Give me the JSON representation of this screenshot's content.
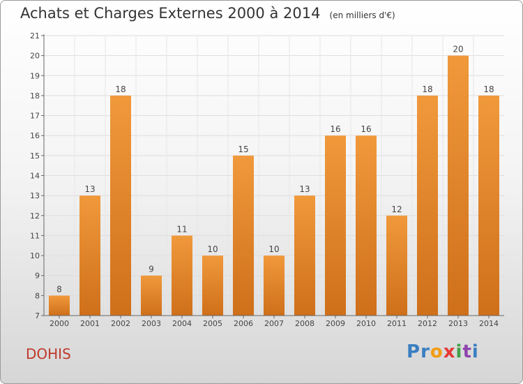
{
  "chart_data": {
    "type": "bar",
    "title": "Achats et Charges Externes 2000 à 2014",
    "subtitle": "(en milliers d'€)",
    "categories": [
      "2000",
      "2001",
      "2002",
      "2003",
      "2004",
      "2005",
      "2006",
      "2007",
      "2008",
      "2009",
      "2010",
      "2011",
      "2012",
      "2013",
      "2014"
    ],
    "values": [
      8,
      13,
      18,
      9,
      11,
      10,
      15,
      10,
      13,
      16,
      16,
      12,
      18,
      20,
      18
    ],
    "ylim": [
      7,
      21
    ],
    "yticks": [
      7,
      8,
      9,
      10,
      11,
      12,
      13,
      14,
      15,
      16,
      17,
      18,
      19,
      20,
      21
    ],
    "grid": true,
    "bar_color": "#f0993b",
    "bar_color_dark": "#cf6f1a"
  },
  "commune": "DOHIS",
  "logo": {
    "text": "Proxiti",
    "letter_colors": [
      "#3a7fc1",
      "#3a7fc1",
      "#f39c12",
      "#e53935",
      "#43a047",
      "#8e44ad",
      "#3a7fc1"
    ]
  }
}
